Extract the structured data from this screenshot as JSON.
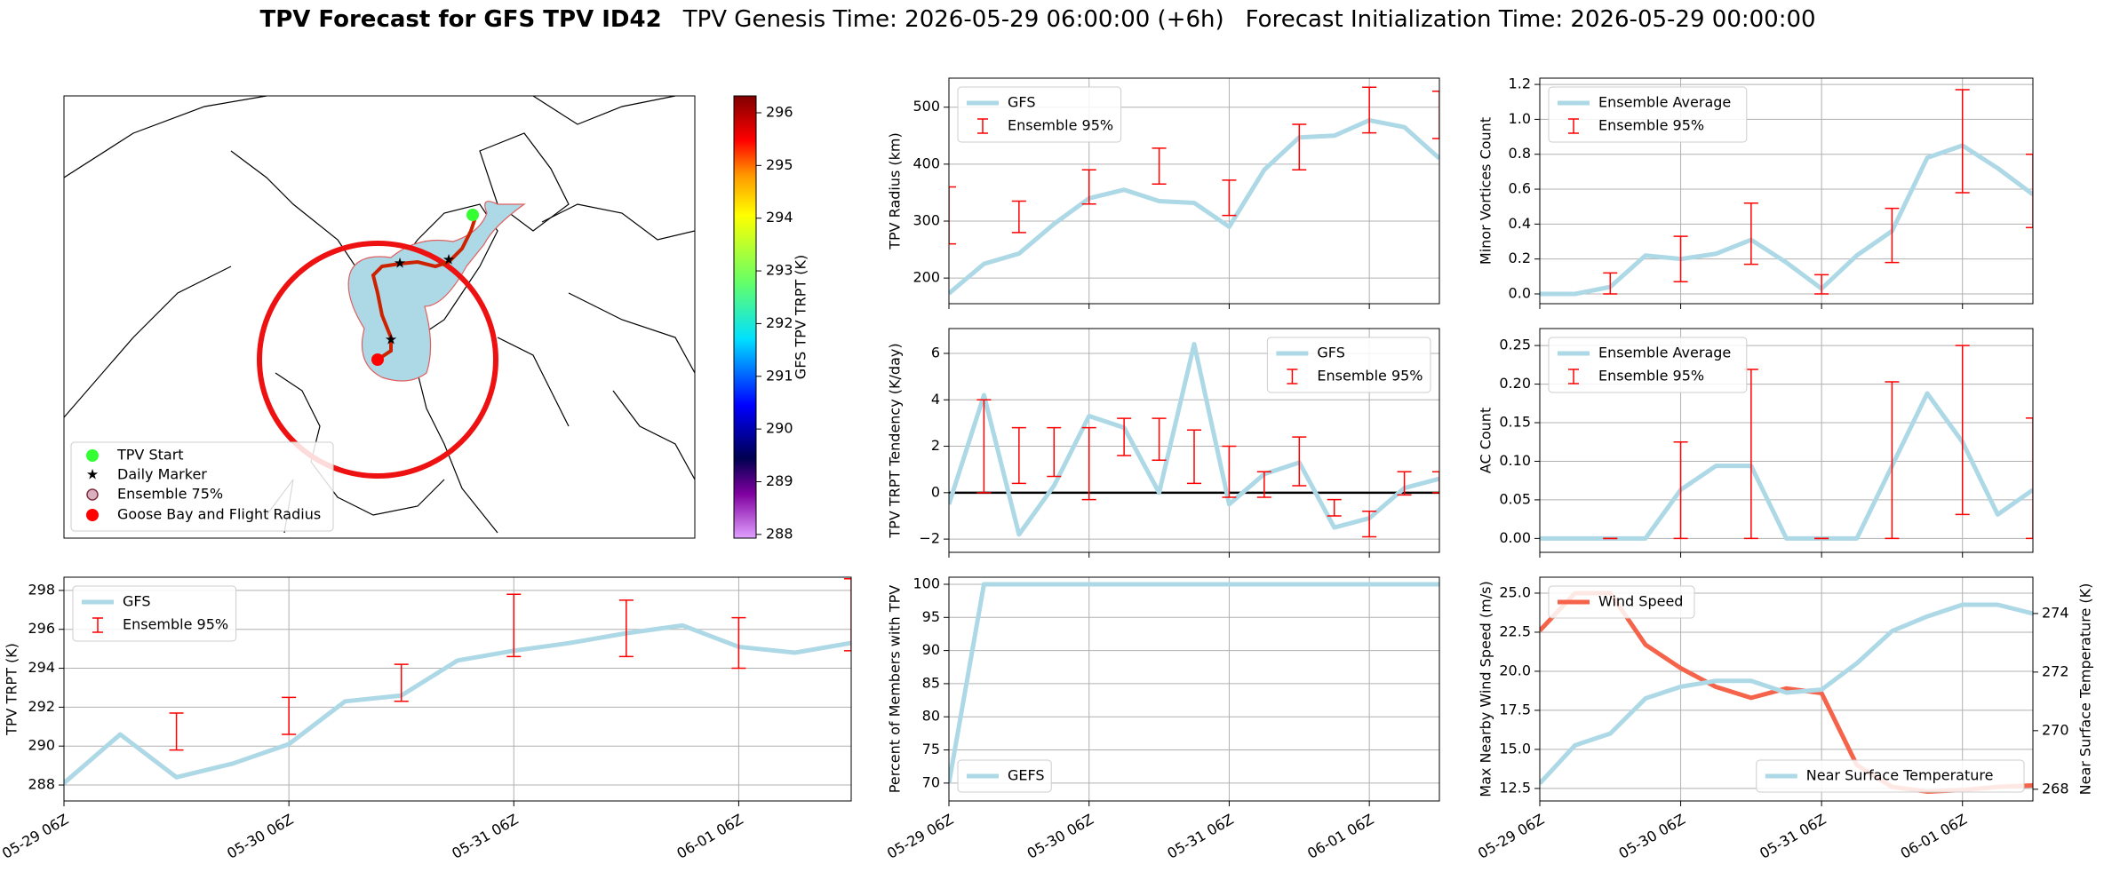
{
  "title": {
    "main": "TPV Forecast for GFS TPV ID42",
    "genesis": "TPV Genesis Time: 2026-05-29 06:00:00 (+6h)",
    "init": "Forecast Initialization Time: 2026-05-29 00:00:00"
  },
  "chart_data": [
    {
      "type": "map",
      "legend_entries": [
        "TPV Start",
        "Daily Marker",
        "Ensemble 75%",
        "Goose Bay and Flight Radius"
      ],
      "colorbar": {
        "label": "GFS TPV TRPT (K)",
        "lim": [
          287.93,
          296.32
        ],
        "ticks": [
          288,
          289,
          290,
          291,
          292,
          293,
          294,
          295,
          296
        ]
      }
    },
    {
      "type": "line",
      "ylabel": "TPV Radius (km)",
      "legend": "upper left",
      "grid": true,
      "show_xtick_labels": false,
      "x": [
        "05-29 06Z",
        "05-29 12Z",
        "05-29 18Z",
        "05-30 00Z",
        "05-30 06Z",
        "05-30 12Z",
        "05-30 18Z",
        "05-31 00Z",
        "05-31 06Z",
        "05-31 12Z",
        "05-31 18Z",
        "06-01 00Z",
        "06-01 06Z",
        "06-01 12Z",
        "06-01 18Z"
      ],
      "xticks": [
        "05-29 06Z",
        "05-30 06Z",
        "05-31 06Z",
        "06-01 06Z"
      ],
      "ylim": [
        155,
        551
      ],
      "yticks": [
        200,
        300,
        400,
        500
      ],
      "series": [
        {
          "name": "GFS",
          "color": "#add8e6",
          "values": [
            173,
            225,
            243,
            295,
            340,
            355,
            335,
            332,
            290,
            390,
            447,
            450,
            477,
            465,
            410
          ]
        },
        {
          "name": "Ensemble 95%",
          "color": "#ff0000",
          "kind": "errorbar",
          "low": [
            260,
            null,
            280,
            null,
            330,
            null,
            365,
            null,
            310,
            null,
            390,
            null,
            455,
            null,
            445
          ],
          "high": [
            360,
            null,
            335,
            null,
            390,
            null,
            428,
            null,
            372,
            null,
            470,
            null,
            535,
            null,
            528
          ]
        }
      ]
    },
    {
      "type": "line",
      "ylabel": "Minor Vortices Count",
      "legend": "upper left",
      "grid": true,
      "show_xtick_labels": false,
      "x": [
        "05-29 06Z",
        "05-29 12Z",
        "05-29 18Z",
        "05-30 00Z",
        "05-30 06Z",
        "05-30 12Z",
        "05-30 18Z",
        "05-31 00Z",
        "05-31 06Z",
        "05-31 12Z",
        "05-31 18Z",
        "06-01 00Z",
        "06-01 06Z",
        "06-01 12Z",
        "06-01 18Z"
      ],
      "xticks": [
        "05-29 06Z",
        "05-30 06Z",
        "05-31 06Z",
        "06-01 06Z"
      ],
      "ylim": [
        -0.056,
        1.236
      ],
      "yticks": [
        {
          "value": 0,
          "label": "0.0"
        },
        0.2,
        0.4,
        0.6,
        0.8,
        {
          "value": 1,
          "label": "1.0"
        },
        1.2
      ],
      "series": [
        {
          "name": "Ensemble Average",
          "color": "#add8e6",
          "values": [
            0,
            0,
            0.04,
            0.22,
            0.2,
            0.23,
            0.31,
            0.18,
            0.03,
            0.22,
            0.36,
            0.78,
            0.85,
            0.72,
            0.57
          ]
        },
        {
          "name": "Ensemble 95%",
          "color": "#ff0000",
          "kind": "errorbar",
          "low": [
            null,
            null,
            0,
            null,
            0.07,
            null,
            0.17,
            null,
            0,
            null,
            0.18,
            null,
            0.58,
            null,
            0.38
          ],
          "high": [
            null,
            null,
            0.12,
            null,
            0.33,
            null,
            0.52,
            null,
            0.11,
            null,
            0.49,
            null,
            1.17,
            null,
            0.8
          ]
        }
      ]
    },
    {
      "type": "line",
      "ylabel": "TPV TRPT Tendency (K/day)",
      "legend": "upper right",
      "grid": true,
      "show_xtick_labels": false,
      "hline": 0,
      "x": [
        "05-29 06Z",
        "05-29 12Z",
        "05-29 18Z",
        "05-30 00Z",
        "05-30 06Z",
        "05-30 12Z",
        "05-30 18Z",
        "05-31 00Z",
        "05-31 06Z",
        "05-31 12Z",
        "05-31 18Z",
        "06-01 00Z",
        "06-01 06Z",
        "06-01 12Z",
        "06-01 18Z"
      ],
      "xticks": [
        "05-29 06Z",
        "05-30 06Z",
        "05-31 06Z",
        "06-01 06Z"
      ],
      "ylim": [
        -2.57,
        7.07
      ],
      "yticks": [
        {
          "value": -2,
          "label": "−2"
        },
        0,
        2,
        4,
        6
      ],
      "series": [
        {
          "name": "GFS",
          "color": "#add8e6",
          "values": [
            -0.5,
            4.2,
            -1.8,
            0.3,
            3.3,
            2.8,
            0,
            6.4,
            -0.5,
            0.8,
            1.3,
            -1.5,
            -1.1,
            0.2,
            0.6
          ]
        },
        {
          "name": "Ensemble 95%",
          "color": "#ff0000",
          "kind": "errorbar",
          "low": [
            null,
            0,
            0.4,
            0.7,
            -0.3,
            1.6,
            1.4,
            0.4,
            -0.2,
            -0.2,
            0.3,
            -1.0,
            -1.9,
            -0.1,
            0
          ],
          "high": [
            null,
            4,
            2.8,
            2.8,
            2.8,
            3.2,
            3.2,
            2.7,
            2.0,
            0.9,
            2.4,
            -0.3,
            -0.8,
            0.9,
            0.9
          ]
        }
      ]
    },
    {
      "type": "line",
      "ylabel": "AC Count",
      "legend": "upper left",
      "grid": true,
      "show_xtick_labels": false,
      "x": [
        "05-29 06Z",
        "05-29 12Z",
        "05-29 18Z",
        "05-30 00Z",
        "05-30 06Z",
        "05-30 12Z",
        "05-30 18Z",
        "05-31 00Z",
        "05-31 06Z",
        "05-31 12Z",
        "05-31 18Z",
        "06-01 00Z",
        "06-01 06Z",
        "06-01 12Z",
        "06-01 18Z"
      ],
      "xticks": [
        "05-29 06Z",
        "05-30 06Z",
        "05-31 06Z",
        "06-01 06Z"
      ],
      "ylim": [
        -0.018,
        0.272
      ],
      "yticks": [
        {
          "value": 0,
          "label": "0.00"
        },
        0.05,
        {
          "value": 0.1,
          "label": "0.10"
        },
        0.15,
        {
          "value": 0.2,
          "label": "0.20"
        },
        0.25
      ],
      "series": [
        {
          "name": "Ensemble Average",
          "color": "#add8e6",
          "values": [
            0,
            0,
            0,
            0,
            0.063,
            0.094,
            0.094,
            0,
            0,
            0,
            0.094,
            0.188,
            0.125,
            0.031,
            0.063
          ]
        },
        {
          "name": "Ensemble 95%",
          "color": "#ff0000",
          "kind": "errorbar",
          "low": [
            null,
            null,
            0,
            null,
            0,
            null,
            0,
            null,
            0,
            null,
            0,
            null,
            0.031,
            null,
            0
          ],
          "high": [
            null,
            null,
            0,
            null,
            0.125,
            null,
            0.219,
            null,
            0,
            null,
            0.203,
            null,
            0.25,
            null,
            0.156
          ]
        }
      ]
    },
    {
      "type": "line",
      "ylabel": "TPV TRPT (K)",
      "legend": "upper left",
      "grid": true,
      "show_xtick_labels": true,
      "x": [
        "05-29 06Z",
        "05-29 12Z",
        "05-29 18Z",
        "05-30 00Z",
        "05-30 06Z",
        "05-30 12Z",
        "05-30 18Z",
        "05-31 00Z",
        "05-31 06Z",
        "05-31 12Z",
        "05-31 18Z",
        "06-01 00Z",
        "06-01 06Z",
        "06-01 12Z",
        "06-01 18Z"
      ],
      "xticks": [
        "05-29 06Z",
        "05-30 06Z",
        "05-31 06Z",
        "06-01 06Z"
      ],
      "ylim": [
        287.18,
        298.68
      ],
      "yticks": [
        288,
        290,
        292,
        294,
        296,
        298
      ],
      "series": [
        {
          "name": "GFS",
          "color": "#add8e6",
          "values": [
            288.1,
            290.6,
            288.4,
            289.1,
            290.1,
            292.3,
            292.6,
            294.4,
            294.9,
            295.3,
            295.8,
            296.2,
            295.1,
            294.8,
            295.3
          ]
        },
        {
          "name": "Ensemble 95%",
          "color": "#ff0000",
          "kind": "errorbar",
          "low": [
            null,
            null,
            289.8,
            null,
            290.6,
            null,
            292.3,
            null,
            294.6,
            null,
            294.6,
            null,
            294.0,
            null,
            294.9
          ],
          "high": [
            null,
            null,
            291.7,
            null,
            292.5,
            null,
            294.2,
            null,
            297.8,
            null,
            297.5,
            null,
            296.6,
            null,
            298.6
          ]
        }
      ]
    },
    {
      "type": "line",
      "ylabel": "Percent of Members with TPV",
      "legend": "lower left",
      "grid": true,
      "show_xtick_labels": true,
      "x": [
        "05-29 06Z",
        "05-29 12Z",
        "05-29 18Z",
        "05-30 00Z",
        "05-30 06Z",
        "05-30 12Z",
        "05-30 18Z",
        "05-31 00Z",
        "05-31 06Z",
        "05-31 12Z",
        "05-31 18Z",
        "06-01 00Z",
        "06-01 06Z",
        "06-01 12Z",
        "06-01 18Z"
      ],
      "xticks": [
        "05-29 06Z",
        "05-30 06Z",
        "05-31 06Z",
        "06-01 06Z"
      ],
      "ylim": [
        67.3,
        101.07
      ],
      "yticks": [
        70,
        75,
        80,
        85,
        90,
        95,
        100
      ],
      "series": [
        {
          "name": "GEFS",
          "color": "#add8e6",
          "values": [
            70,
            100,
            100,
            100,
            100,
            100,
            100,
            100,
            100,
            100,
            100,
            100,
            100,
            100,
            100
          ]
        }
      ]
    },
    {
      "type": "line",
      "ylabel": "Max Nearby Wind Speed (m/s)",
      "ylabel_color": "#f4634a",
      "y2label": "Near Surface Temperature (K)",
      "y2_color": "#4169e1",
      "grid": true,
      "show_xtick_labels": true,
      "x": [
        "05-29 06Z",
        "05-29 12Z",
        "05-29 18Z",
        "05-30 00Z",
        "05-30 06Z",
        "05-30 12Z",
        "05-30 18Z",
        "05-31 00Z",
        "05-31 06Z",
        "05-31 12Z",
        "05-31 18Z",
        "06-01 00Z",
        "06-01 06Z",
        "06-01 12Z",
        "06-01 18Z"
      ],
      "xticks": [
        "05-29 06Z",
        "05-30 06Z",
        "05-31 06Z",
        "06-01 06Z"
      ],
      "ylim": [
        11.7,
        26.02
      ],
      "yticks": [
        12.5,
        {
          "value": 15,
          "label": "15.0"
        },
        17.5,
        {
          "value": 20,
          "label": "20.0"
        },
        22.5,
        {
          "value": 25,
          "label": "25.0"
        }
      ],
      "y2lim": [
        267.6,
        275.24
      ],
      "y2ticks": [
        268,
        270,
        272,
        274
      ],
      "series": [
        {
          "name": "Wind Speed",
          "color": "#f4634a",
          "legend": "upper left",
          "values": [
            22.6,
            25.0,
            25.0,
            21.7,
            20.2,
            19.0,
            18.3,
            18.9,
            18.6,
            14.0,
            12.6,
            12.3,
            12.4,
            12.6,
            12.7
          ]
        },
        {
          "name": "Near Surface Temperature",
          "color": "#add8e6",
          "legend": "lower right",
          "axis": "y2",
          "values": [
            268.2,
            269.5,
            269.9,
            271.1,
            271.5,
            271.7,
            271.7,
            271.3,
            271.4,
            272.3,
            273.4,
            273.9,
            274.3,
            274.3,
            274.0
          ]
        }
      ]
    }
  ]
}
